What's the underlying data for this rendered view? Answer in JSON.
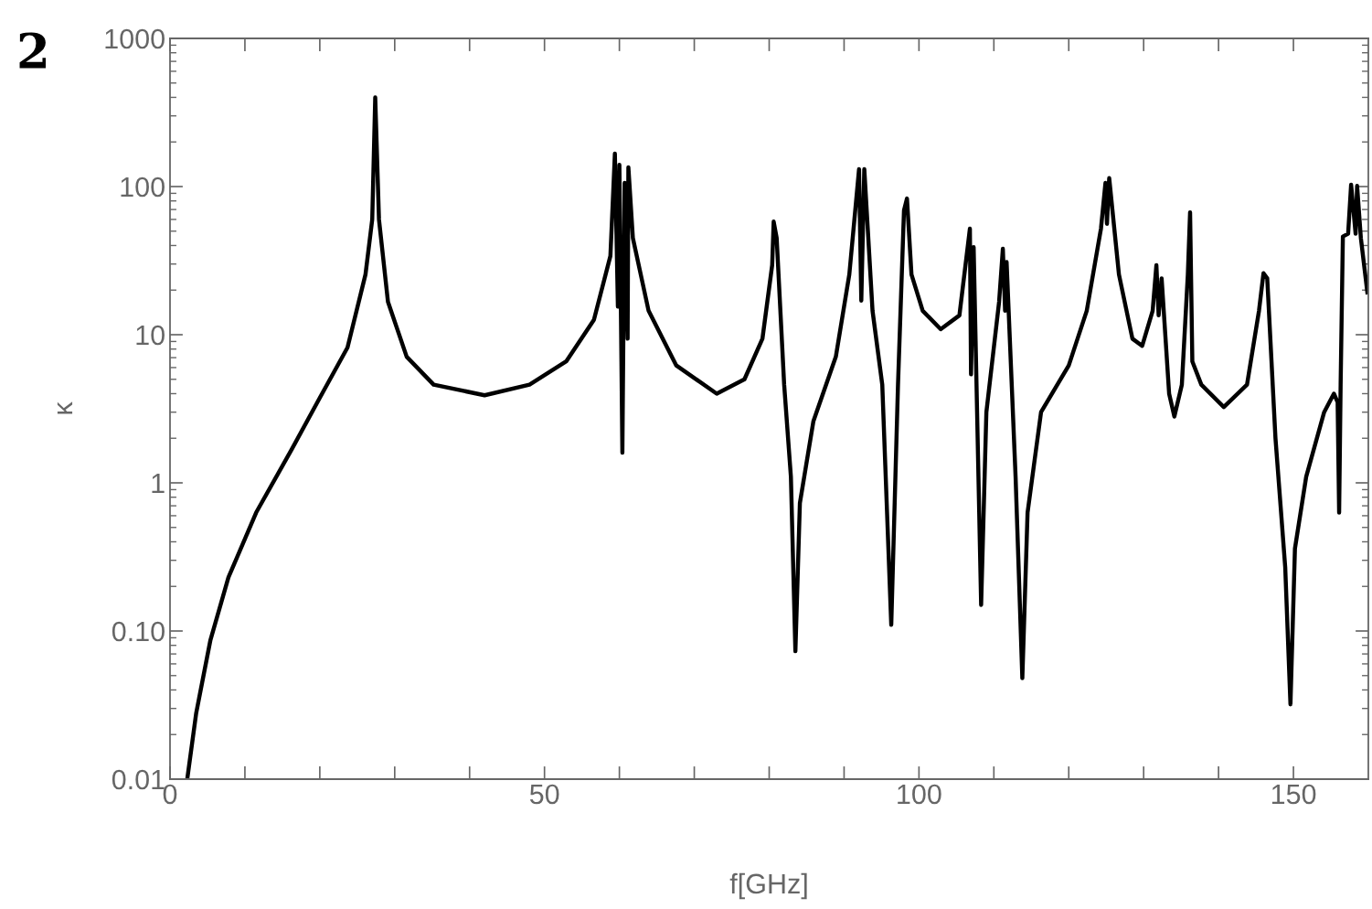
{
  "chart_data": {
    "type": "line",
    "xlabel": "f[GHz]",
    "ylabel": "κ",
    "annotations": [
      "2"
    ],
    "log": "y",
    "grid": false,
    "marker": "none",
    "line_style": "solid",
    "xlim": [
      0,
      160
    ],
    "ylim": [
      0.01,
      1000
    ],
    "xticks": [
      0,
      {
        "value": 10,
        "label": null
      },
      {
        "value": 20,
        "label": null
      },
      {
        "value": 30,
        "label": null
      },
      {
        "value": 40,
        "label": null
      },
      50,
      {
        "value": 60,
        "label": null
      },
      {
        "value": 70,
        "label": null
      },
      {
        "value": 80,
        "label": null
      },
      {
        "value": 90,
        "label": null
      },
      100,
      {
        "value": 110,
        "label": null
      },
      {
        "value": 120,
        "label": null
      },
      {
        "value": 130,
        "label": null
      },
      {
        "value": 140,
        "label": null
      },
      150
    ],
    "yticks": [
      {
        "value": 0.01,
        "label": "0.01"
      },
      {
        "value": 0.1,
        "label": "0.10"
      },
      1,
      10,
      100,
      1000
    ],
    "series": [
      {
        "color": "#000000",
        "x": [
          2.3,
          3.5,
          5.4,
          7.8,
          11.5,
          16.3,
          20,
          23.7,
          26.1,
          27,
          27.4,
          27.9,
          29.1,
          31.6,
          35.2,
          42,
          48,
          52.9,
          56.6,
          58.8,
          59.4,
          59.8,
          60.0,
          60.4,
          60.7,
          61.1,
          61.2,
          61.8,
          63.9,
          67.6,
          73,
          76.7,
          79.1,
          80.4,
          80.6,
          81,
          82,
          82.9,
          83.5,
          84.1,
          85.9,
          88.9,
          90.7,
          92,
          92.3,
          92.7,
          93.8,
          95.1,
          96.3,
          97.2,
          98,
          98.4,
          99,
          100.5,
          102.9,
          105.4,
          106.8,
          106.95,
          107.3,
          108.3,
          109,
          110.7,
          111.2,
          111.5,
          111.7,
          112.9,
          113.8,
          114.5,
          116.3,
          120,
          122.4,
          124.3,
          124.9,
          125.1,
          125.4,
          126.7,
          128.5,
          129.8,
          131.2,
          131.7,
          132,
          132.4,
          133.4,
          134.1,
          135.1,
          135.9,
          136.2,
          136.5,
          137.7,
          140.7,
          143.8,
          145.4,
          146,
          146.5,
          147.6,
          148.9,
          149.6,
          150.2,
          151.7,
          154.1,
          155.4,
          155.9,
          156.1,
          156.3,
          156.6,
          157.3,
          157.7,
          158.3,
          158.5,
          159,
          159.9
        ],
        "values": [
          0.01,
          0.028,
          0.087,
          0.23,
          0.63,
          1.7,
          3.75,
          8.2,
          25.5,
          60,
          400,
          60,
          16.7,
          7.1,
          4.6,
          3.9,
          4.6,
          6.6,
          12.6,
          34,
          167,
          15.5,
          140,
          1.6,
          106,
          9.4,
          135,
          45,
          14.5,
          6.2,
          4.0,
          5.0,
          9.4,
          29.5,
          58,
          45,
          4.6,
          1.1,
          0.073,
          0.73,
          2.6,
          7.1,
          25.5,
          131,
          17,
          131,
          14.5,
          4.6,
          0.11,
          4.6,
          69,
          83,
          25.5,
          14.5,
          10.9,
          13.5,
          52,
          5.4,
          39,
          0.15,
          3.0,
          16.7,
          38,
          14.5,
          31,
          1.1,
          0.048,
          0.63,
          3.0,
          6.2,
          14.5,
          52,
          106,
          56,
          114,
          25.5,
          9.4,
          8.4,
          14.5,
          29.5,
          13.5,
          24,
          4.0,
          2.8,
          4.6,
          25.5,
          67,
          6.6,
          4.6,
          3.25,
          4.6,
          14.5,
          26,
          24,
          2.0,
          0.27,
          0.032,
          0.36,
          1.1,
          3.0,
          4.0,
          3.5,
          0.63,
          4.6,
          46,
          48,
          103,
          48,
          101,
          45,
          18.7
        ]
      }
    ]
  }
}
